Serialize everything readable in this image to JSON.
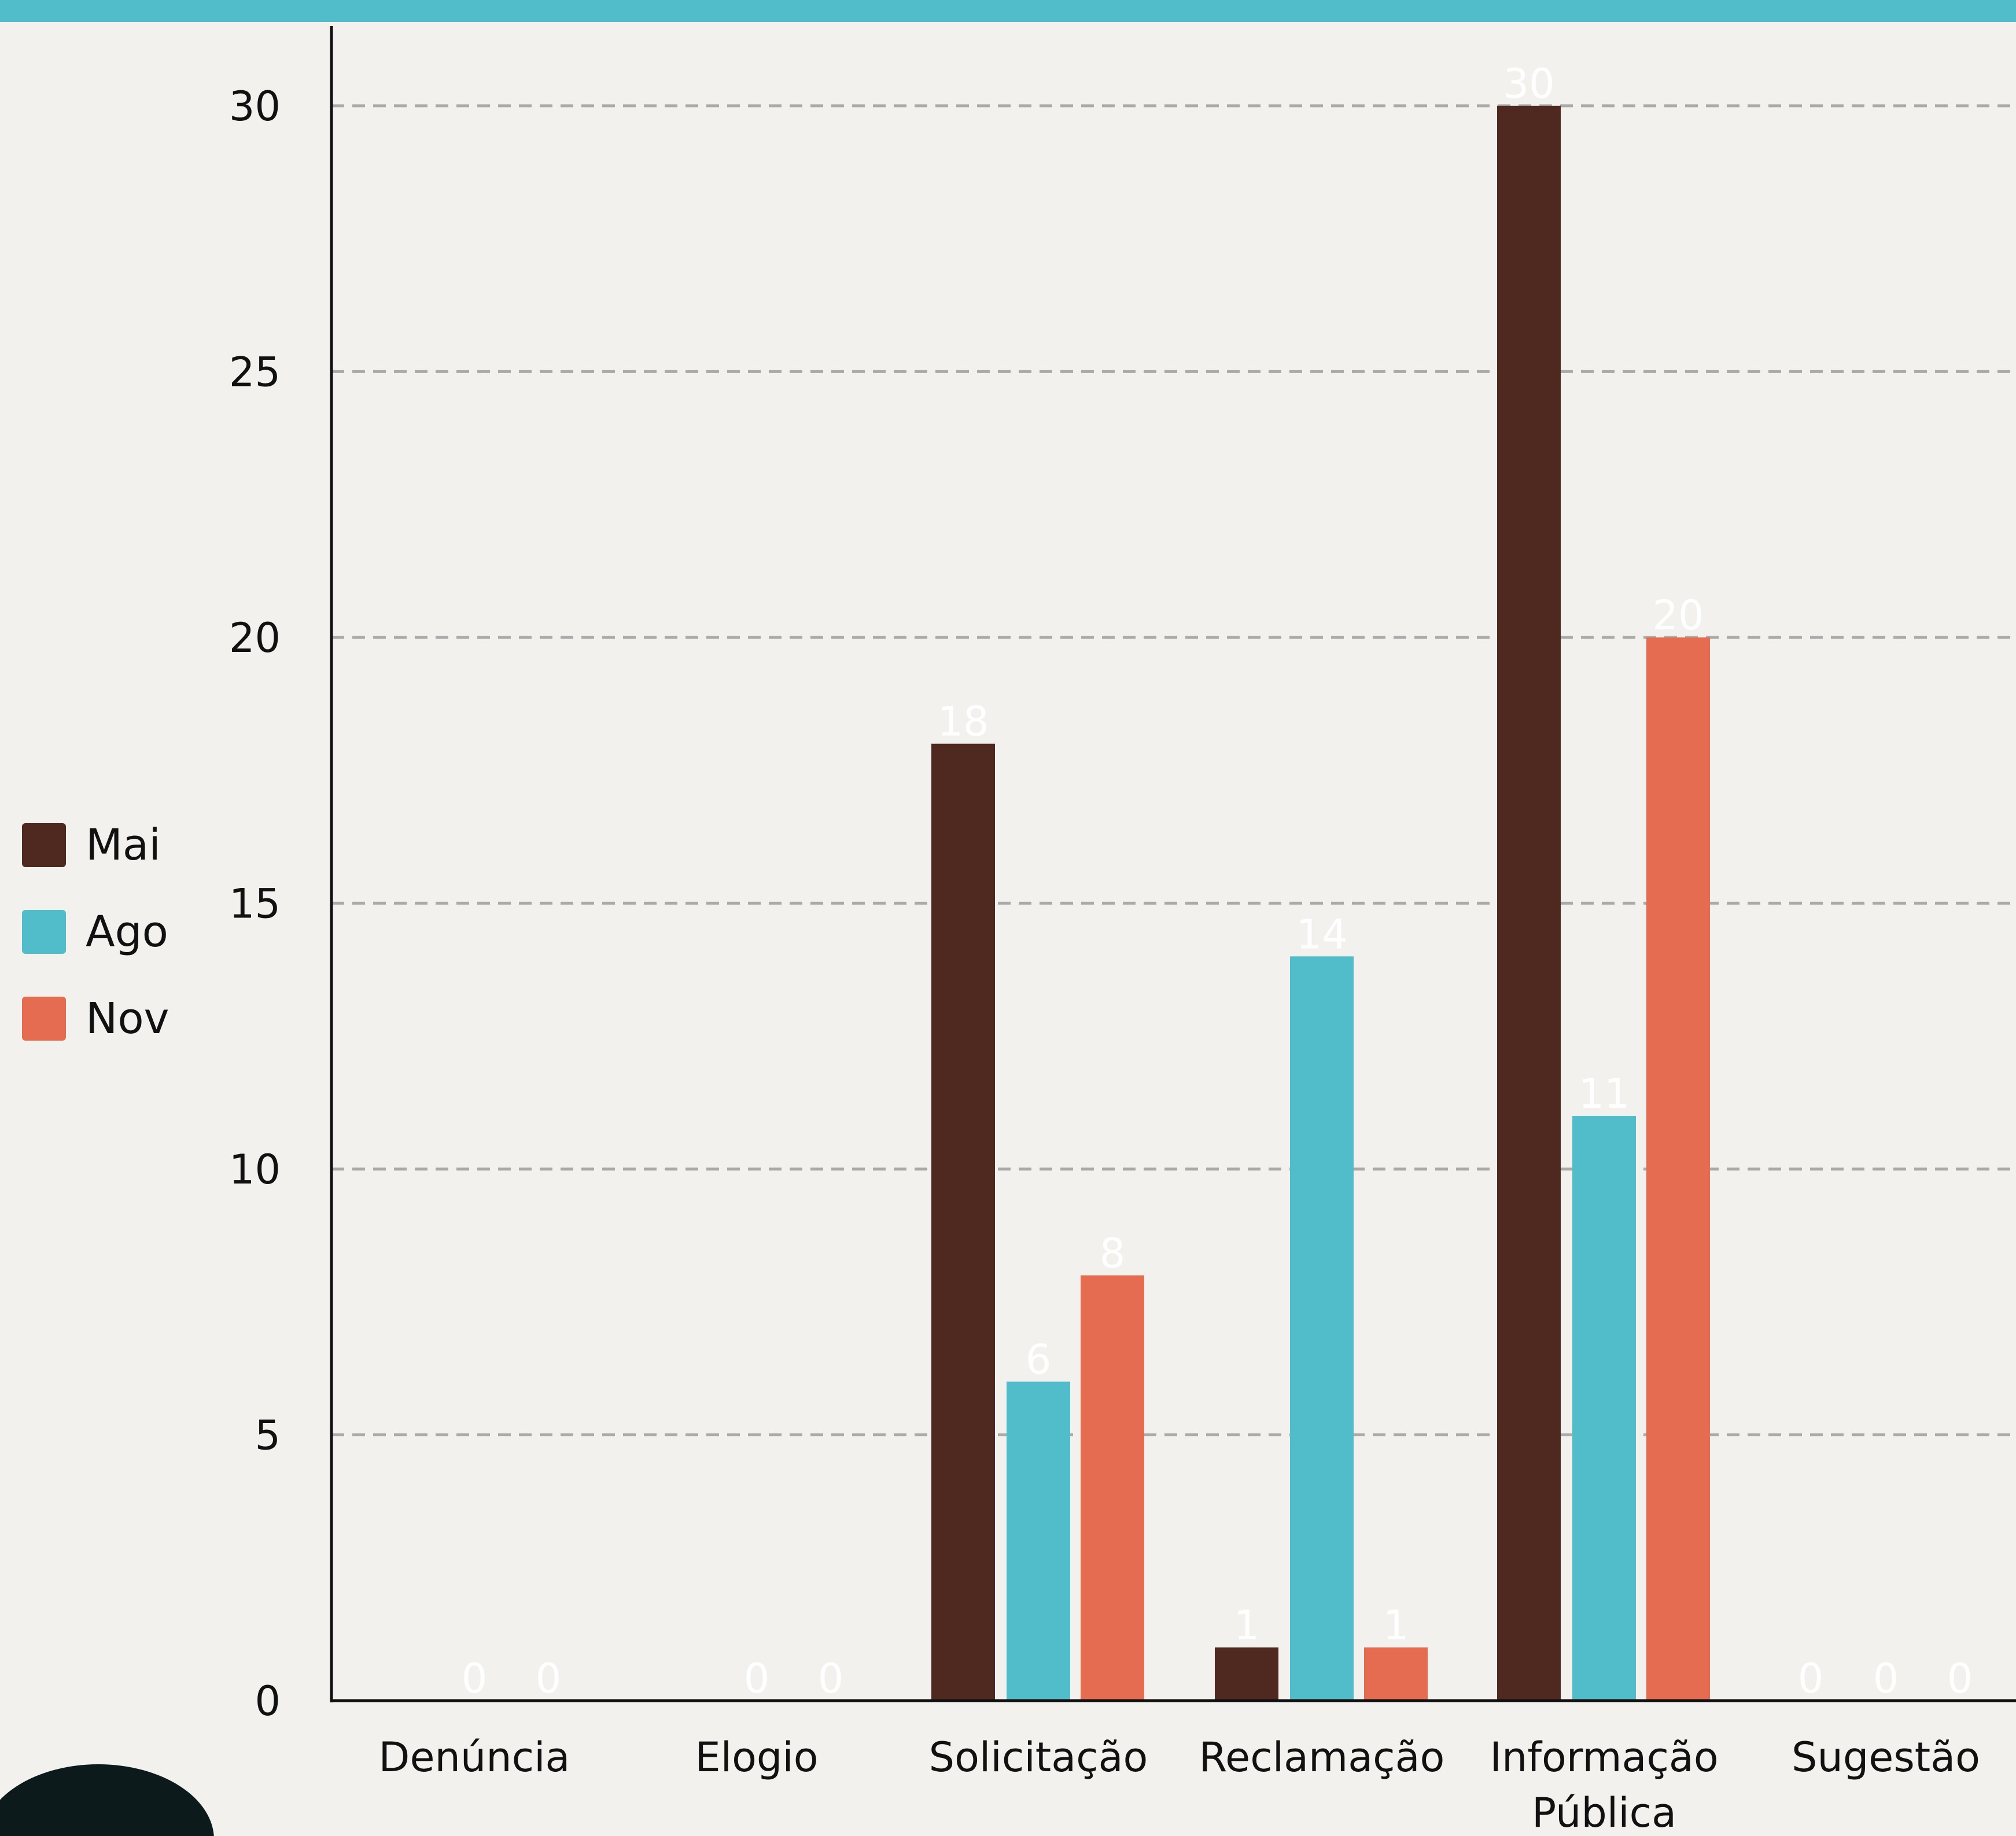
{
  "colors": {
    "background": "#f2f1ed",
    "top_bar": "#52bdca",
    "axis": "#111111",
    "grid": "#aaaaaa",
    "decor": "#0d1a1c"
  },
  "chart_data": {
    "type": "bar",
    "title": "",
    "xlabel": "",
    "ylabel": "",
    "categories": [
      "Denúncia",
      "Elogio",
      "Solicitação",
      "Reclamação",
      "Informação\nPública",
      "Sugestão"
    ],
    "series": [
      {
        "name": "Mai",
        "color": "#4f281f",
        "values": [
          null,
          null,
          18,
          1,
          30,
          0
        ]
      },
      {
        "name": "Ago",
        "color": "#52bdca",
        "values": [
          0,
          0,
          6,
          14,
          11,
          0
        ]
      },
      {
        "name": "Nov",
        "color": "#e66c51",
        "values": [
          0,
          0,
          8,
          1,
          20,
          0
        ]
      }
    ],
    "ylim": [
      0,
      31.5
    ],
    "yticks": [
      0,
      5,
      10,
      15,
      20,
      25,
      30
    ],
    "grid": true,
    "grid_style": "dashed",
    "legend_position": "left",
    "data_labels": true
  }
}
